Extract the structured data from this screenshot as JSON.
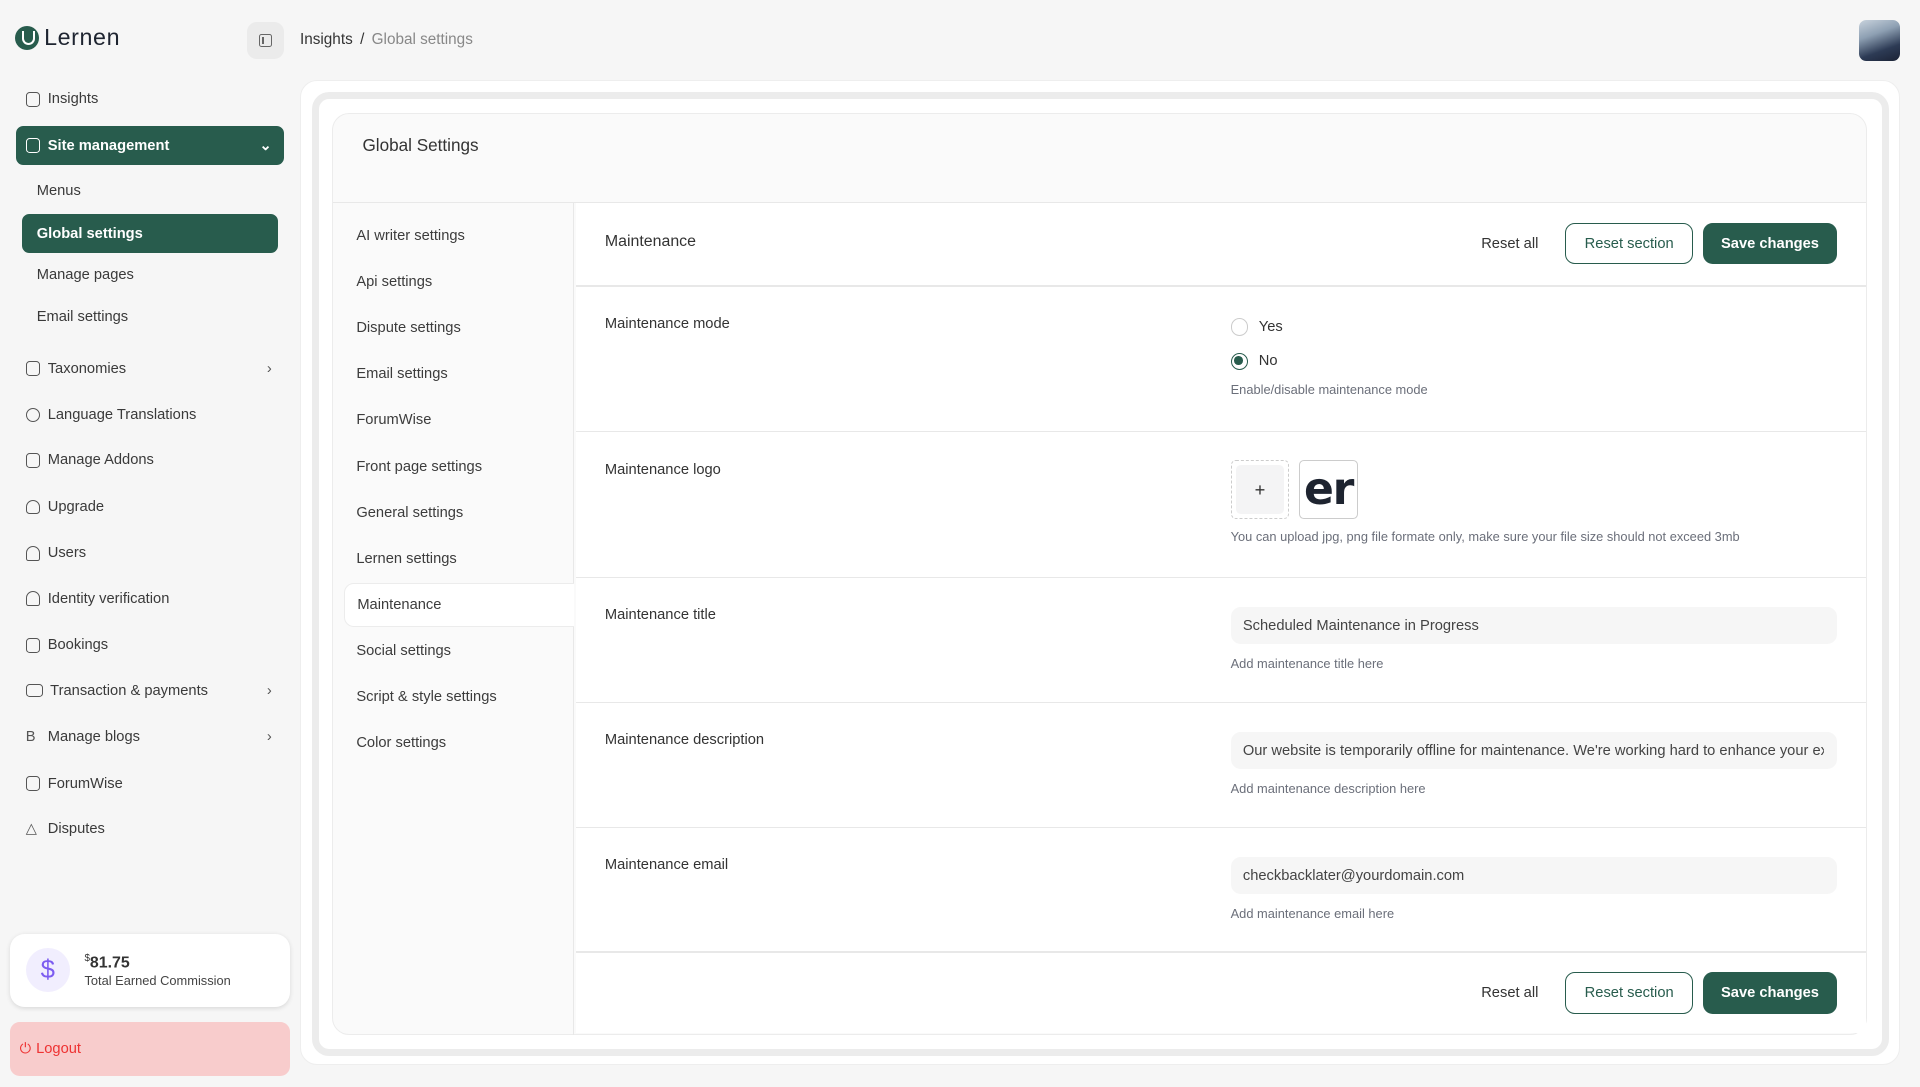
{
  "app": {
    "name": "Lernen"
  },
  "breadcrumb": {
    "parent": "Insights",
    "separator": "/",
    "current": "Global settings"
  },
  "sidebar": {
    "items": [
      {
        "label": "Insights",
        "icon": "layers-icon"
      },
      {
        "label": "Site management",
        "icon": "layout-icon"
      },
      {
        "label": "Taxonomies",
        "icon": "database-icon"
      },
      {
        "label": "Language Translations",
        "icon": "globe-icon"
      },
      {
        "label": "Manage Addons",
        "icon": "folder-plus-icon"
      },
      {
        "label": "Upgrade",
        "icon": "cloud-upload-icon"
      },
      {
        "label": "Users",
        "icon": "users-icon"
      },
      {
        "label": "Identity verification",
        "icon": "user-check-icon"
      },
      {
        "label": "Bookings",
        "icon": "file-icon"
      },
      {
        "label": "Transaction & payments",
        "icon": "credit-card-icon"
      },
      {
        "label": "Manage blogs",
        "icon": "bold-b-icon"
      },
      {
        "label": "ForumWise",
        "icon": "message-square-icon"
      },
      {
        "label": "Disputes",
        "icon": "alert-triangle-icon"
      }
    ],
    "sub_items": [
      "Menus",
      "Global settings",
      "Manage pages",
      "Email settings"
    ],
    "commission": {
      "currency": "$",
      "amount": "81.75",
      "label": "Total Earned Commission"
    },
    "logout": "Logout"
  },
  "settings": {
    "title": "Global Settings",
    "nav": [
      "AI writer settings",
      "Api settings",
      "Dispute settings",
      "Email settings",
      "ForumWise",
      "Front page settings",
      "General settings",
      "Lernen settings",
      "Maintenance",
      "Social settings",
      "Script & style settings",
      "Color settings"
    ],
    "active": "Maintenance"
  },
  "section": {
    "title": "Maintenance",
    "reset_all": "Reset all",
    "reset_section": "Reset section",
    "save": "Save changes",
    "mode": {
      "label": "Maintenance mode",
      "yes": "Yes",
      "no": "No",
      "selected": "No",
      "hint": "Enable/disable maintenance mode"
    },
    "logo": {
      "label": "Maintenance logo",
      "add": "+",
      "preview": "er",
      "hint": "You can upload jpg, png file formate only, make sure your file size should not exceed 3mb"
    },
    "mtitle": {
      "label": "Maintenance title",
      "value": "Scheduled Maintenance in Progress",
      "hint": "Add maintenance title here"
    },
    "description": {
      "label": "Maintenance description",
      "value": "Our website is temporarily offline for maintenance. We're working hard to enhance your experience",
      "hint": "Add maintenance description here"
    },
    "email": {
      "label": "Maintenance email",
      "value": "checkbacklater@yourdomain.com",
      "hint": "Add maintenance email here"
    }
  },
  "colors": {
    "primary": "#285c4d",
    "logout_bg": "#f8cccc",
    "commission_icon": "#7c5cf0"
  }
}
